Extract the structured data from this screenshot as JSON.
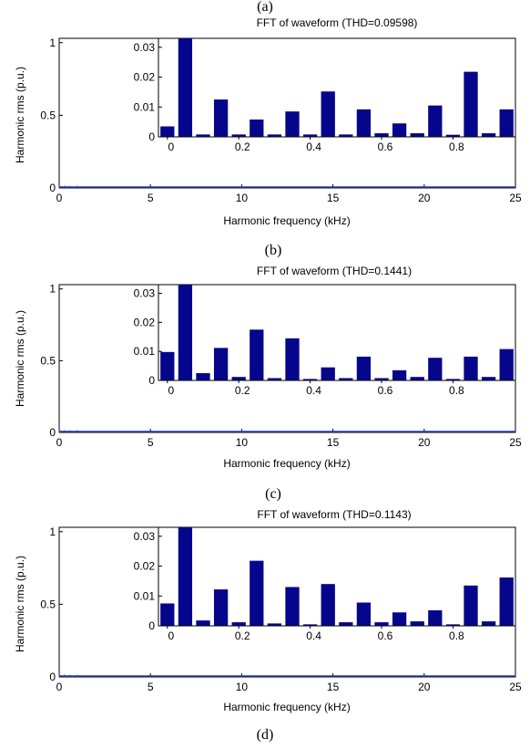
{
  "labels": {
    "top_label": "(a)",
    "bottom_label": "(d)"
  },
  "colors": {
    "bar": "#06068c",
    "axis": "#000000",
    "main_line": "#2a3bb0",
    "inset_grid": "#d9d9d9"
  },
  "panels": [
    {
      "title": "FFT of waveform (THD=0.09598)",
      "caption": "(b)",
      "xlabel": "Harmonic frequency (kHz)",
      "ylabel": "Harmonic rms (p.u.)"
    },
    {
      "title": "FFT of waveform (THD=0.1441)",
      "caption": "(c)",
      "xlabel": "Harmonic frequency (kHz)",
      "ylabel": "Harmonic rms (p.u.)"
    },
    {
      "title": "FFT of waveform (THD=0.1143)",
      "caption": "",
      "xlabel": "Harmonic frequency (kHz)",
      "ylabel": "Harmonic rms (p.u.)"
    }
  ],
  "chart_data": [
    {
      "type": "bar",
      "title": "FFT of waveform (THD=0.09598)",
      "xlabel": "Harmonic frequency (kHz)",
      "ylabel": "Harmonic rms (p.u.)",
      "xlim": [
        0,
        25
      ],
      "ylim": [
        0,
        1.03
      ],
      "xticks": [
        "0",
        "5",
        "10",
        "15",
        "20",
        "25"
      ],
      "yticks": [
        "0",
        "0.5",
        "1"
      ],
      "main_series": {
        "x": [
          0,
          0.1,
          0.3,
          0.6,
          1.0,
          10.0,
          20.0
        ],
        "values": [
          0,
          0,
          0.003,
          0.002,
          0.002,
          0.004,
          0.004
        ]
      },
      "inset": {
        "xlim": [
          -0.025,
          0.975
        ],
        "ylim": [
          0,
          0.033
        ],
        "xticks": [
          "0",
          "0.2",
          "0.4",
          "0.6",
          "0.8"
        ],
        "yticks": [
          "0",
          "0.01",
          "0.02",
          "0.03"
        ],
        "x": [
          0,
          0.05,
          0.1,
          0.15,
          0.2,
          0.25,
          0.3,
          0.35,
          0.4,
          0.45,
          0.5,
          0.55,
          0.6,
          0.65,
          0.7,
          0.75,
          0.8,
          0.85,
          0.9,
          0.95
        ],
        "values": [
          0.0035,
          0.034,
          0.0008,
          0.0125,
          0.0008,
          0.0058,
          0.0008,
          0.0085,
          0.0008,
          0.0152,
          0.0008,
          0.0092,
          0.0012,
          0.0045,
          0.0012,
          0.0105,
          0.0007,
          0.0218,
          0.0012,
          0.0092
        ]
      }
    },
    {
      "type": "bar",
      "title": "FFT of waveform (THD=0.1441)",
      "xlabel": "Harmonic frequency (kHz)",
      "ylabel": "Harmonic rms (p.u.)",
      "xlim": [
        0,
        25
      ],
      "ylim": [
        0,
        1.03
      ],
      "xticks": [
        "0",
        "5",
        "10",
        "15",
        "20",
        "25"
      ],
      "yticks": [
        "0",
        "0.5",
        "1"
      ],
      "main_series": {
        "x": [
          0,
          0.1,
          0.3,
          0.6,
          1.0,
          10.0,
          20.0
        ],
        "values": [
          0,
          0,
          0.003,
          0.002,
          0.002,
          0.004,
          0.004
        ]
      },
      "inset": {
        "xlim": [
          -0.025,
          0.975
        ],
        "ylim": [
          0,
          0.033
        ],
        "xticks": [
          "0",
          "0.2",
          "0.4",
          "0.6",
          "0.8"
        ],
        "yticks": [
          "0",
          "0.01",
          "0.02",
          "0.03"
        ],
        "x": [
          0,
          0.05,
          0.1,
          0.15,
          0.2,
          0.25,
          0.3,
          0.35,
          0.4,
          0.45,
          0.5,
          0.55,
          0.6,
          0.65,
          0.7,
          0.75,
          0.8,
          0.85,
          0.9,
          0.95
        ],
        "values": [
          0.0098,
          0.034,
          0.0025,
          0.0112,
          0.0012,
          0.0175,
          0.0008,
          0.0145,
          0.0005,
          0.0045,
          0.0008,
          0.0082,
          0.0008,
          0.0035,
          0.0012,
          0.0078,
          0.0005,
          0.0082,
          0.0012,
          0.0108
        ]
      }
    },
    {
      "type": "bar",
      "title": "FFT of waveform (THD=0.1143)",
      "xlabel": "Harmonic frequency (kHz)",
      "ylabel": "Harmonic rms (p.u.)",
      "xlim": [
        0,
        25
      ],
      "ylim": [
        0,
        1.03
      ],
      "xticks": [
        "0",
        "5",
        "10",
        "15",
        "20",
        "25"
      ],
      "yticks": [
        "0",
        "0.5",
        "1"
      ],
      "main_series": {
        "x": [
          0,
          0.1,
          0.3,
          0.6,
          1.0,
          10.0,
          20.0
        ],
        "values": [
          0,
          0,
          0.003,
          0.002,
          0.002,
          0.004,
          0.004
        ]
      },
      "inset": {
        "xlim": [
          -0.025,
          0.975
        ],
        "ylim": [
          0,
          0.033
        ],
        "xticks": [
          "0",
          "0.2",
          "0.4",
          "0.6",
          "0.8"
        ],
        "yticks": [
          "0",
          "0.01",
          "0.02",
          "0.03"
        ],
        "x": [
          0,
          0.05,
          0.1,
          0.15,
          0.2,
          0.25,
          0.3,
          0.35,
          0.4,
          0.45,
          0.5,
          0.55,
          0.6,
          0.65,
          0.7,
          0.75,
          0.8,
          0.85,
          0.9,
          0.95
        ],
        "values": [
          0.0075,
          0.034,
          0.0018,
          0.0122,
          0.0012,
          0.0218,
          0.0008,
          0.013,
          0.0005,
          0.014,
          0.0012,
          0.0078,
          0.0012,
          0.0045,
          0.0015,
          0.0052,
          0.0005,
          0.0135,
          0.0015,
          0.0162
        ]
      }
    }
  ]
}
